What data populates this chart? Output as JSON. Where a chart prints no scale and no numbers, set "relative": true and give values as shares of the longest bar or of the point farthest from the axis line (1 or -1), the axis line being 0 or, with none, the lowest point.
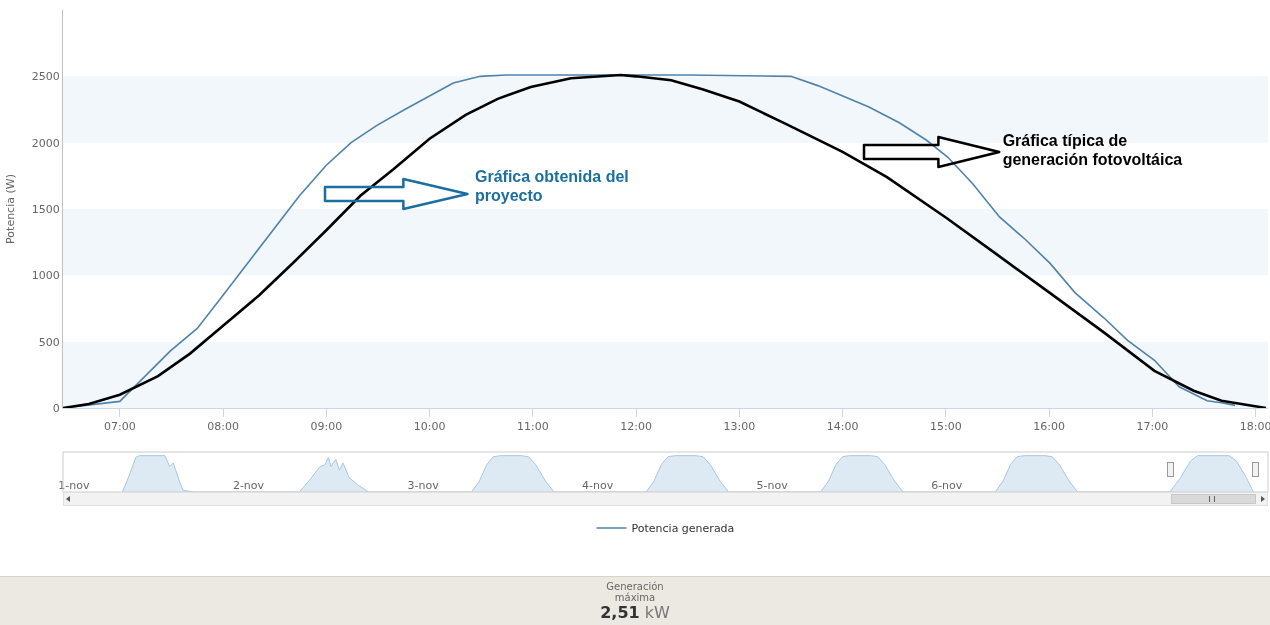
{
  "chart_data": [
    {
      "type": "line",
      "ylabel": "Potencia (W)",
      "xlim": [
        6.45,
        18.12
      ],
      "xticks": [
        {
          "value": 7,
          "label": "07:00"
        },
        {
          "value": 8,
          "label": "08:00"
        },
        {
          "value": 9,
          "label": "09:00"
        },
        {
          "value": 10,
          "label": "10:00"
        },
        {
          "value": 11,
          "label": "11:00"
        },
        {
          "value": 12,
          "label": "12:00"
        },
        {
          "value": 13,
          "label": "13:00"
        },
        {
          "value": 14,
          "label": "14:00"
        },
        {
          "value": 15,
          "label": "15:00"
        },
        {
          "value": 16,
          "label": "16:00"
        },
        {
          "value": 17,
          "label": "17:00"
        },
        {
          "value": 18,
          "label": "18:00"
        }
      ],
      "ylim": [
        0,
        3000
      ],
      "yticks": [
        0,
        500,
        1000,
        1500,
        2000,
        2500
      ],
      "legend": "bottom",
      "marker": "none",
      "line_style": "solid",
      "bands": [
        {
          "axis": "y",
          "from": 0,
          "to": 500,
          "color": "#f2f7fb"
        },
        {
          "axis": "y",
          "from": 1000,
          "to": 1500,
          "color": "#f2f7fb"
        },
        {
          "axis": "y",
          "from": 2000,
          "to": 2500,
          "color": "#f2f7fb"
        }
      ],
      "annotations": [
        "Gráfica obtenida del proyecto",
        "Gráfica típica de generación fotovoltáica"
      ],
      "series": [
        {
          "name": "Potencia generada",
          "color": "#4f83a9",
          "x": [
            6.45,
            7.0,
            7.49,
            7.75,
            8.0,
            8.74,
            9.0,
            9.24,
            9.49,
            9.76,
            10.23,
            10.49,
            10.74,
            11.5,
            12.5,
            13.5,
            13.76,
            14.25,
            14.55,
            14.81,
            15.02,
            15.26,
            15.52,
            15.77,
            16.01,
            16.25,
            16.53,
            16.76,
            17.02,
            17.26,
            17.53,
            17.67,
            17.8
          ],
          "values": [
            0,
            50,
            430,
            600,
            850,
            1600,
            1830,
            2000,
            2130,
            2250,
            2450,
            2500,
            2510,
            2510,
            2510,
            2500,
            2430,
            2270,
            2150,
            2020,
            1890,
            1690,
            1440,
            1270,
            1090,
            870,
            680,
            510,
            360,
            160,
            55,
            40,
            20
          ]
        },
        {
          "color": "#000000",
          "x": [
            6.45,
            6.7,
            7.0,
            7.37,
            7.68,
            8.0,
            8.35,
            8.7,
            9.0,
            9.33,
            9.65,
            10.0,
            10.35,
            10.66,
            10.98,
            11.37,
            11.85,
            12.0,
            12.34,
            12.65,
            13.0,
            13.44,
            14.0,
            14.43,
            15.01,
            15.49,
            16.02,
            16.53,
            17.02,
            17.4,
            17.67,
            18.1
          ],
          "values": [
            0,
            30,
            100,
            240,
            410,
            620,
            850,
            1110,
            1340,
            1600,
            1800,
            2030,
            2210,
            2330,
            2420,
            2485,
            2510,
            2500,
            2470,
            2400,
            2310,
            2145,
            1930,
            1740,
            1430,
            1160,
            860,
            570,
            280,
            130,
            55,
            0
          ]
        }
      ]
    },
    {
      "type": "area",
      "relative": true,
      "xlim": [
        "--10-31T22:30",
        "--11-07T20:10"
      ],
      "xticks": [
        {
          "value": "--11-01",
          "label": "1-nov"
        },
        {
          "value": "--11-02",
          "label": "2-nov"
        },
        {
          "value": "--11-03",
          "label": "3-nov"
        },
        {
          "value": "--11-04",
          "label": "4-nov"
        },
        {
          "value": "--11-05",
          "label": "5-nov"
        },
        {
          "value": "--11-06",
          "label": "6-nov"
        }
      ],
      "series": [
        {
          "color": "#a9c8e2",
          "x": [
            "--11-01T06:40",
            "--11-01T07:30",
            "--11-01T08:30",
            "--11-01T09:00",
            "--11-01T12:30",
            "--11-01T13:10",
            "--11-01T13:40",
            "--11-01T14:30",
            "--11-01T15:00",
            "--11-01T16:30",
            "--11-02T07:00",
            "--11-02T08:30",
            "--11-02T09:50",
            "--11-02T10:30",
            "--11-02T11:00",
            "--11-02T11:20",
            "--11-02T12:00",
            "--11-02T12:30",
            "--11-02T13:00",
            "--11-02T13:50",
            "--11-02T15:00",
            "--11-02T16:30",
            "--11-03T06:40",
            "--11-03T07:45",
            "--11-03T08:45",
            "--11-03T09:40",
            "--11-03T10:40",
            "--11-03T13:30",
            "--11-03T14:30",
            "--11-03T15:30",
            "--11-03T16:50",
            "--11-03T18:00",
            "--11-04T06:40",
            "--11-04T07:45",
            "--11-04T08:45",
            "--11-04T09:40",
            "--11-04T10:40",
            "--11-04T13:30",
            "--11-04T14:30",
            "--11-04T15:30",
            "--11-04T16:50",
            "--11-04T18:00",
            "--11-05T06:40",
            "--11-05T07:45",
            "--11-05T08:45",
            "--11-05T09:40",
            "--11-05T10:40",
            "--11-05T13:30",
            "--11-05T14:30",
            "--11-05T15:30",
            "--11-05T16:50",
            "--11-05T18:00",
            "--11-06T06:40",
            "--11-06T07:45",
            "--11-06T08:45",
            "--11-06T09:40",
            "--11-06T10:40",
            "--11-06T13:30",
            "--11-06T14:30",
            "--11-06T15:30",
            "--11-06T16:50",
            "--11-06T18:00",
            "--11-07T06:40",
            "--11-07T08:10",
            "--11-07T09:30",
            "--11-07T10:30",
            "--11-07T14:50",
            "--11-07T15:50",
            "--11-07T17:10",
            "--11-07T18:10"
          ],
          "values": [
            0,
            0.4,
            0.95,
            1,
            1,
            0.7,
            0.8,
            0.3,
            0.05,
            0,
            0,
            0.35,
            0.7,
            0.75,
            0.95,
            0.7,
            0.9,
            0.6,
            0.8,
            0.4,
            0.2,
            0,
            0,
            0.3,
            0.75,
            0.97,
            1,
            1,
            0.97,
            0.75,
            0.3,
            0,
            0,
            0.3,
            0.75,
            0.97,
            1,
            1,
            0.97,
            0.75,
            0.3,
            0,
            0,
            0.3,
            0.75,
            0.97,
            1,
            1,
            0.97,
            0.75,
            0.3,
            0,
            0,
            0.3,
            0.75,
            0.97,
            1,
            1,
            0.97,
            0.75,
            0.3,
            0,
            0,
            0.4,
            0.85,
            1,
            1,
            0.85,
            0.4,
            0
          ]
        }
      ]
    },
    {
      "type": "other",
      "title": "Generación máxima",
      "annotations": [
        "2,51",
        "kW"
      ]
    }
  ]
}
